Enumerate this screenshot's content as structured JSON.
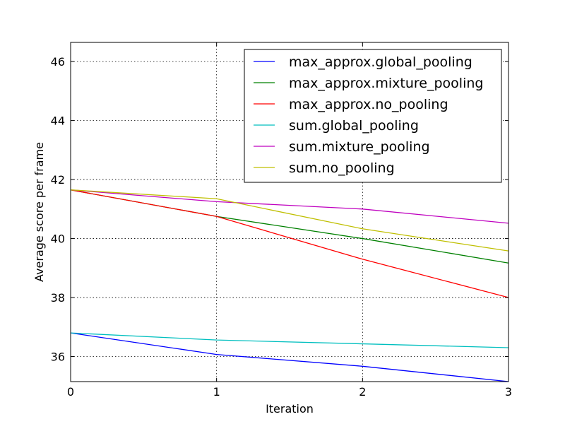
{
  "chart_data": {
    "type": "line",
    "xlabel": "Iteration",
    "ylabel": "Average score per frame",
    "xlim": [
      0,
      3
    ],
    "ylim": [
      35.15,
      46.65
    ],
    "xticks": [
      0,
      1,
      2,
      3
    ],
    "yticks": [
      36,
      38,
      40,
      42,
      44,
      46
    ],
    "grid": true,
    "legend_position": "top-right",
    "x": [
      0,
      1,
      2,
      3
    ],
    "series": [
      {
        "name": "max_approx.global_pooling",
        "color": "#0000ff",
        "values": [
          36.8,
          36.07,
          35.67,
          35.15
        ]
      },
      {
        "name": "max_approx.mixture_pooling",
        "color": "#008000",
        "values": [
          41.65,
          40.75,
          40.0,
          39.17
        ]
      },
      {
        "name": "max_approx.no_pooling",
        "color": "#ff0000",
        "values": [
          41.65,
          40.75,
          39.3,
          38.0
        ]
      },
      {
        "name": "sum.global_pooling",
        "color": "#00bfbf",
        "values": [
          36.8,
          36.56,
          36.43,
          36.3
        ]
      },
      {
        "name": "sum.mixture_pooling",
        "color": "#bf00bf",
        "values": [
          41.65,
          41.25,
          41.0,
          40.52
        ]
      },
      {
        "name": "sum.no_pooling",
        "color": "#bfbf00",
        "values": [
          41.65,
          41.35,
          40.33,
          39.58
        ]
      }
    ]
  }
}
